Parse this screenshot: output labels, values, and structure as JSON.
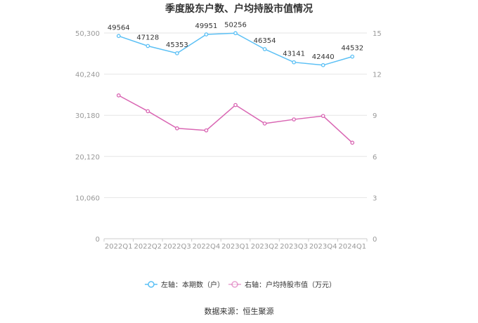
{
  "chart_data": {
    "type": "line",
    "title": "季度股东户数、户均持股市值情况",
    "categories": [
      "2022Q1",
      "2022Q2",
      "2022Q3",
      "2022Q4",
      "2023Q1",
      "2023Q2",
      "2023Q3",
      "2023Q4",
      "2024Q1"
    ],
    "series": [
      {
        "name": "左轴：本期数（户）",
        "axis": "left",
        "color": "#5bc0f5",
        "values": [
          49564,
          47128,
          45353,
          49951,
          50256,
          46354,
          43141,
          42440,
          44532
        ],
        "data_labels": [
          "49564",
          "47128",
          "45353",
          "49951",
          "50256",
          "46354",
          "43141",
          "42440",
          "44532"
        ]
      },
      {
        "name": "右轴：户均持股市值（万元）",
        "axis": "right",
        "color": "#d966b3",
        "values": [
          10.45,
          9.3,
          8.05,
          7.9,
          9.75,
          8.4,
          8.7,
          8.95,
          7.0
        ]
      }
    ],
    "left_axis": {
      "ylim": [
        0,
        50300
      ],
      "ticks": [
        "0",
        "10,060",
        "20,120",
        "30,180",
        "40,240",
        "50,300"
      ]
    },
    "right_axis": {
      "ylim": [
        0,
        15
      ],
      "ticks": [
        "0",
        "3",
        "6",
        "9",
        "12",
        "15"
      ]
    },
    "grid": true,
    "legend_position": "bottom",
    "source": "数据来源：恒生聚源"
  }
}
